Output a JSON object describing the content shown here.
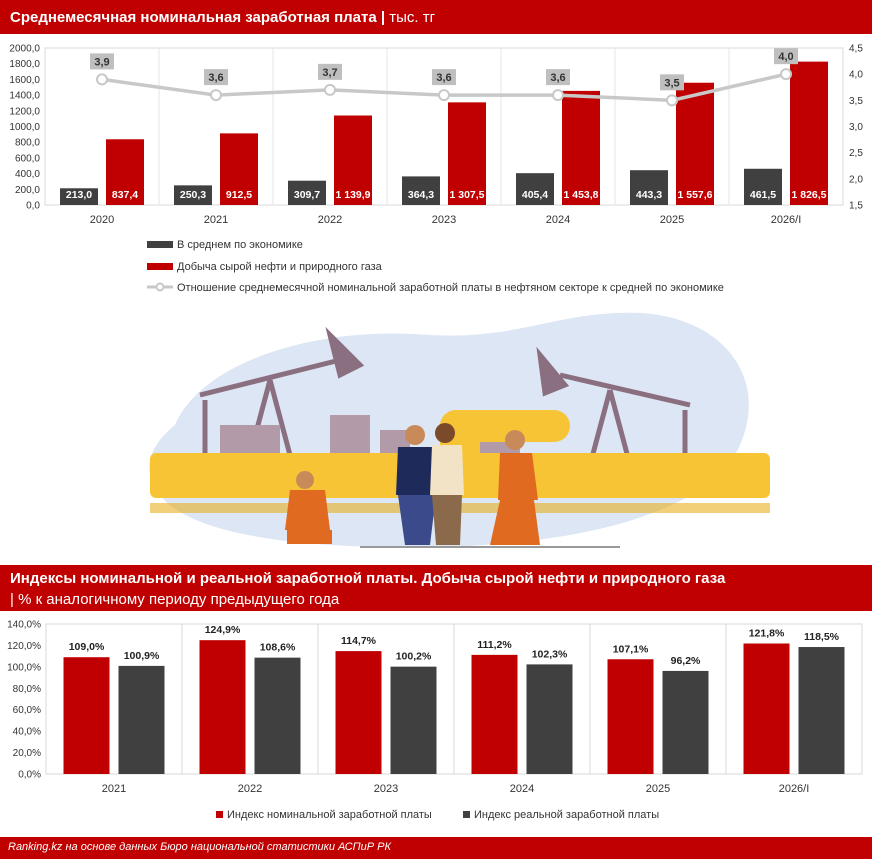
{
  "header1": {
    "title": "Среднемесячная номинальная заработная плата",
    "separator": "|",
    "unit": "тыс. тг"
  },
  "header2": {
    "title": "Индексы номинальной и реальной заработной платы. Добыча сырой нефти и природного газа",
    "subtitle": "| % к аналогичному периоду предыдущего года"
  },
  "footer": {
    "source": "Ranking.kz на основе данных Бюро национальной статистики АСПиР РК"
  },
  "colors": {
    "red": "#c00000",
    "dark": "#404040",
    "line": "#c8c8c8",
    "label_bg": "#bfbfbf"
  },
  "chart_data": [
    {
      "type": "bar",
      "categories": [
        "2020",
        "2021",
        "2022",
        "2023",
        "2024",
        "2025",
        "2026/I"
      ],
      "series": [
        {
          "name": "В среднем по экономике",
          "type": "bar",
          "values": [
            213.0,
            250.3,
            309.7,
            364.3,
            405.4,
            443.3,
            461.5
          ],
          "labels": [
            "213,0",
            "250,3",
            "309,7",
            "364,3",
            "405,4",
            "443,3",
            "461,5"
          ]
        },
        {
          "name": "Добыча сырой нефти и природного газа",
          "type": "bar",
          "values": [
            837.4,
            912.5,
            1139.9,
            1307.5,
            1453.8,
            1557.6,
            1826.5
          ],
          "labels": [
            "837,4",
            "912,5",
            "1 139,9",
            "1 307,5",
            "1 453,8",
            "1 557,6",
            "1 826,5"
          ]
        },
        {
          "name": "Отношение среднемесячной номинальной заработной платы в нефтяном секторе к средней по экономике",
          "type": "line",
          "axis": "right",
          "values": [
            3.9,
            3.6,
            3.7,
            3.6,
            3.6,
            3.5,
            4.0
          ],
          "labels": [
            "3,9",
            "3,6",
            "3,7",
            "3,6",
            "3,6",
            "3,5",
            "4,0"
          ]
        }
      ],
      "y_left": {
        "min": 0,
        "max": 2000,
        "ticks": [
          "0,0",
          "200,0",
          "400,0",
          "600,0",
          "800,0",
          "1000,0",
          "1200,0",
          "1400,0",
          "1600,0",
          "1800,0",
          "2000,0"
        ]
      },
      "y_right": {
        "min": 1.5,
        "max": 4.5,
        "ticks": [
          "1,5",
          "2,0",
          "2,5",
          "3,0",
          "3,5",
          "4,0",
          "4,5"
        ]
      },
      "legend": "bottom"
    },
    {
      "type": "bar",
      "categories": [
        "2021",
        "2022",
        "2023",
        "2024",
        "2025",
        "2026/I"
      ],
      "series": [
        {
          "name": "Индекс номинальной заработной платы",
          "values": [
            109.0,
            124.9,
            114.7,
            111.2,
            107.1,
            121.8
          ],
          "labels": [
            "109,0%",
            "124,9%",
            "114,7%",
            "111,2%",
            "107,1%",
            "121,8%"
          ]
        },
        {
          "name": "Индекс реальной заработной платы",
          "values": [
            100.9,
            108.6,
            100.2,
            102.3,
            96.2,
            118.5
          ],
          "labels": [
            "100,9%",
            "108,6%",
            "100,2%",
            "102,3%",
            "96,2%",
            "118,5%"
          ]
        }
      ],
      "y": {
        "min": 0,
        "max": 140,
        "ticks": [
          "0,0%",
          "20,0%",
          "40,0%",
          "60,0%",
          "80,0%",
          "100,0%",
          "120,0%",
          "140,0%"
        ]
      },
      "grid": "vertical",
      "legend": "bottom"
    }
  ]
}
